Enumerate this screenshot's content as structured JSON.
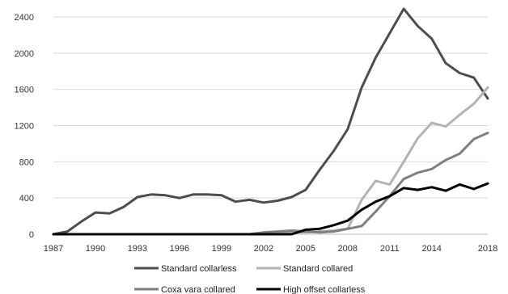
{
  "chart_data": {
    "type": "line",
    "title": "",
    "xlabel": "",
    "ylabel": "",
    "x": [
      1987,
      1988,
      1989,
      1990,
      1991,
      1992,
      1993,
      1994,
      1995,
      1996,
      1997,
      1998,
      1999,
      2000,
      2001,
      2002,
      2003,
      2004,
      2005,
      2006,
      2007,
      2008,
      2009,
      2010,
      2011,
      2012,
      2013,
      2014,
      2015,
      2016,
      2017,
      2018
    ],
    "xticks": [
      "1987",
      "1990",
      "1993",
      "1996",
      "1999",
      "2002",
      "2005",
      "2008",
      "2011",
      "2014",
      "2018"
    ],
    "yticks": [
      "0",
      "400",
      "800",
      "1200",
      "1600",
      "2000",
      "2400"
    ],
    "ylim": [
      0,
      2500
    ],
    "grid": "horizontal",
    "legend_position": "bottom",
    "series": [
      {
        "name": "Standard collarless",
        "color": "#4d4d4d",
        "values": [
          0,
          30,
          140,
          240,
          230,
          300,
          410,
          440,
          430,
          400,
          440,
          440,
          430,
          360,
          380,
          350,
          370,
          410,
          490,
          710,
          920,
          1160,
          1620,
          1950,
          2220,
          2490,
          2300,
          2160,
          1890,
          1780,
          1730,
          1500
        ]
      },
      {
        "name": "Standard collared",
        "color": "#b3b3b3",
        "values": [
          0,
          0,
          0,
          0,
          0,
          0,
          0,
          0,
          0,
          0,
          0,
          0,
          0,
          0,
          0,
          10,
          20,
          20,
          20,
          30,
          40,
          60,
          380,
          590,
          550,
          800,
          1060,
          1230,
          1190,
          1320,
          1440,
          1620
        ]
      },
      {
        "name": "Coxa vara collared",
        "color": "#7f7f7f",
        "values": [
          0,
          0,
          0,
          0,
          0,
          0,
          0,
          0,
          0,
          0,
          0,
          0,
          0,
          0,
          0,
          20,
          30,
          40,
          30,
          20,
          30,
          60,
          90,
          250,
          420,
          610,
          680,
          720,
          820,
          890,
          1050,
          1120
        ]
      },
      {
        "name": "High offset collarless",
        "color": "#000000",
        "values": [
          0,
          0,
          0,
          0,
          0,
          0,
          0,
          0,
          0,
          0,
          0,
          0,
          0,
          0,
          0,
          0,
          0,
          0,
          50,
          60,
          100,
          150,
          270,
          360,
          420,
          510,
          490,
          520,
          480,
          550,
          500,
          560
        ]
      }
    ]
  }
}
